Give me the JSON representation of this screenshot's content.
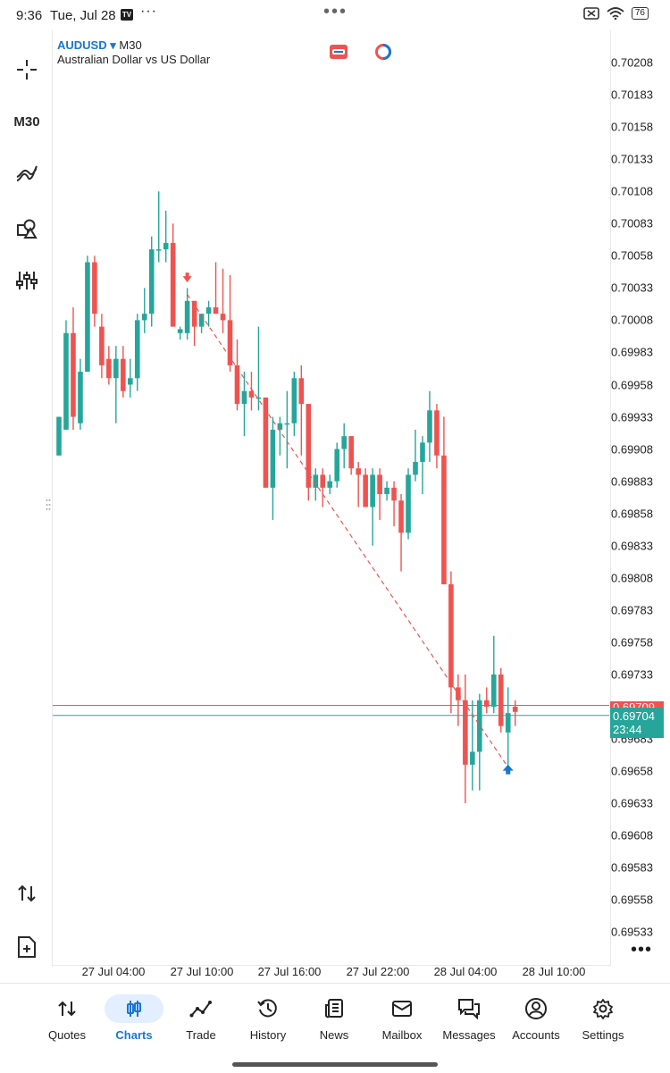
{
  "status_bar": {
    "time": "9:36",
    "date": "Tue, Jul 28",
    "app_badge": "TV",
    "dots": "···",
    "center_dots": "•••",
    "battery": "76"
  },
  "chart_header": {
    "symbol": "AUDUSD",
    "symbol_caret": "▾",
    "timeframe": "M30",
    "description": "Australian Dollar vs US Dollar"
  },
  "sidebar": {
    "timeframe_label": "M30"
  },
  "price_axis": {
    "ticks": [
      "0.70208",
      "0.70183",
      "0.70158",
      "0.70133",
      "0.70108",
      "0.70083",
      "0.70058",
      "0.70033",
      "0.70008",
      "0.69983",
      "0.69958",
      "0.69933",
      "0.69908",
      "0.69883",
      "0.69858",
      "0.69833",
      "0.69808",
      "0.69783",
      "0.69758",
      "0.69733",
      "0.69683",
      "0.69658",
      "0.69633",
      "0.69608",
      "0.69583",
      "0.69558",
      "0.69533"
    ],
    "ask_label": "0.69709",
    "bid_label": "0.69704",
    "countdown": "23:44",
    "more": "•••"
  },
  "time_axis": {
    "ticks": [
      "27 Jul 04:00",
      "27 Jul 10:00",
      "27 Jul 16:00",
      "27 Jul 22:00",
      "28 Jul 04:00",
      "28 Jul 10:00"
    ]
  },
  "colors": {
    "bull": "#26a69a",
    "bear": "#ef5350",
    "accent": "#1976d2",
    "ask_line": "#ef5350",
    "bid_line": "#26a69a"
  },
  "chart_data": {
    "type": "candlestick",
    "symbol": "AUDUSD",
    "timeframe": "M30",
    "ylim": [
      0.6952,
      0.70225
    ],
    "bid": 0.69704,
    "ask": 0.69709,
    "candles": [
      {
        "o": 0.69903,
        "h": 0.69933,
        "l": 0.69903,
        "c": 0.69933
      },
      {
        "o": 0.69923,
        "h": 0.70008,
        "l": 0.69923,
        "c": 0.69998
      },
      {
        "o": 0.69998,
        "h": 0.70018,
        "l": 0.69923,
        "c": 0.69933
      },
      {
        "o": 0.69928,
        "h": 0.69978,
        "l": 0.69923,
        "c": 0.69968
      },
      {
        "o": 0.69968,
        "h": 0.70058,
        "l": 0.69968,
        "c": 0.70053
      },
      {
        "o": 0.70053,
        "h": 0.70058,
        "l": 0.70003,
        "c": 0.70013
      },
      {
        "o": 0.70003,
        "h": 0.70013,
        "l": 0.69963,
        "c": 0.69973
      },
      {
        "o": 0.69978,
        "h": 0.69988,
        "l": 0.69958,
        "c": 0.69963
      },
      {
        "o": 0.69963,
        "h": 0.69988,
        "l": 0.69928,
        "c": 0.69978
      },
      {
        "o": 0.69978,
        "h": 0.69988,
        "l": 0.69948,
        "c": 0.69953
      },
      {
        "o": 0.69958,
        "h": 0.69978,
        "l": 0.69948,
        "c": 0.69963
      },
      {
        "o": 0.69963,
        "h": 0.70013,
        "l": 0.69953,
        "c": 0.70008
      },
      {
        "o": 0.70008,
        "h": 0.70033,
        "l": 0.69998,
        "c": 0.70013
      },
      {
        "o": 0.70013,
        "h": 0.70073,
        "l": 0.70003,
        "c": 0.70063
      },
      {
        "o": 0.70063,
        "h": 0.70108,
        "l": 0.70053,
        "c": 0.70063
      },
      {
        "o": 0.70063,
        "h": 0.70093,
        "l": 0.70053,
        "c": 0.70068
      },
      {
        "o": 0.70068,
        "h": 0.70083,
        "l": 0.70003,
        "c": 0.70003
      },
      {
        "o": 0.69998,
        "h": 0.70003,
        "l": 0.69993,
        "c": 0.70001
      },
      {
        "o": 0.69998,
        "h": 0.70033,
        "l": 0.69993,
        "c": 0.70023
      },
      {
        "o": 0.70023,
        "h": 0.70023,
        "l": 0.69988,
        "c": 0.70003
      },
      {
        "o": 0.70003,
        "h": 0.70013,
        "l": 0.69998,
        "c": 0.70013
      },
      {
        "o": 0.70013,
        "h": 0.70023,
        "l": 0.70003,
        "c": 0.70018
      },
      {
        "o": 0.70018,
        "h": 0.70053,
        "l": 0.70013,
        "c": 0.70013
      },
      {
        "o": 0.70013,
        "h": 0.70048,
        "l": 0.69998,
        "c": 0.70008
      },
      {
        "o": 0.70008,
        "h": 0.70043,
        "l": 0.69968,
        "c": 0.69973
      },
      {
        "o": 0.69973,
        "h": 0.69993,
        "l": 0.69938,
        "c": 0.69943
      },
      {
        "o": 0.69943,
        "h": 0.69968,
        "l": 0.69918,
        "c": 0.69953
      },
      {
        "o": 0.69953,
        "h": 0.69968,
        "l": 0.69938,
        "c": 0.69948
      },
      {
        "o": 0.69948,
        "h": 0.70003,
        "l": 0.69938,
        "c": 0.69948
      },
      {
        "o": 0.69948,
        "h": 0.69948,
        "l": 0.69878,
        "c": 0.69878
      },
      {
        "o": 0.69878,
        "h": 0.69933,
        "l": 0.69853,
        "c": 0.69923
      },
      {
        "o": 0.69923,
        "h": 0.69933,
        "l": 0.69903,
        "c": 0.69928
      },
      {
        "o": 0.69928,
        "h": 0.69953,
        "l": 0.69893,
        "c": 0.69928
      },
      {
        "o": 0.69928,
        "h": 0.69968,
        "l": 0.69918,
        "c": 0.69963
      },
      {
        "o": 0.69963,
        "h": 0.69973,
        "l": 0.69903,
        "c": 0.69943
      },
      {
        "o": 0.69943,
        "h": 0.69943,
        "l": 0.69868,
        "c": 0.69878
      },
      {
        "o": 0.69878,
        "h": 0.69893,
        "l": 0.69868,
        "c": 0.69888
      },
      {
        "o": 0.69888,
        "h": 0.69893,
        "l": 0.69863,
        "c": 0.69878
      },
      {
        "o": 0.69878,
        "h": 0.69888,
        "l": 0.69873,
        "c": 0.69883
      },
      {
        "o": 0.69883,
        "h": 0.69913,
        "l": 0.69878,
        "c": 0.69908
      },
      {
        "o": 0.69908,
        "h": 0.69928,
        "l": 0.69893,
        "c": 0.69918
      },
      {
        "o": 0.69918,
        "h": 0.69918,
        "l": 0.69888,
        "c": 0.69893
      },
      {
        "o": 0.69893,
        "h": 0.69898,
        "l": 0.69863,
        "c": 0.69888
      },
      {
        "o": 0.69888,
        "h": 0.69893,
        "l": 0.69863,
        "c": 0.69863
      },
      {
        "o": 0.69863,
        "h": 0.69893,
        "l": 0.69833,
        "c": 0.69888
      },
      {
        "o": 0.69888,
        "h": 0.69893,
        "l": 0.69853,
        "c": 0.69873
      },
      {
        "o": 0.69873,
        "h": 0.69883,
        "l": 0.69868,
        "c": 0.69878
      },
      {
        "o": 0.69878,
        "h": 0.69883,
        "l": 0.69848,
        "c": 0.69868
      },
      {
        "o": 0.69868,
        "h": 0.69873,
        "l": 0.69813,
        "c": 0.69843
      },
      {
        "o": 0.69843,
        "h": 0.69893,
        "l": 0.69838,
        "c": 0.69888
      },
      {
        "o": 0.69888,
        "h": 0.69923,
        "l": 0.69883,
        "c": 0.69898
      },
      {
        "o": 0.69898,
        "h": 0.69918,
        "l": 0.69873,
        "c": 0.69913
      },
      {
        "o": 0.69913,
        "h": 0.69953,
        "l": 0.69898,
        "c": 0.69938
      },
      {
        "o": 0.69938,
        "h": 0.69943,
        "l": 0.69893,
        "c": 0.69903
      },
      {
        "o": 0.69903,
        "h": 0.69933,
        "l": 0.69803,
        "c": 0.69803
      },
      {
        "o": 0.69803,
        "h": 0.69813,
        "l": 0.69703,
        "c": 0.69723
      },
      {
        "o": 0.69723,
        "h": 0.69733,
        "l": 0.69693,
        "c": 0.69713
      },
      {
        "o": 0.69713,
        "h": 0.69733,
        "l": 0.69633,
        "c": 0.69663
      },
      {
        "o": 0.69663,
        "h": 0.69713,
        "l": 0.69643,
        "c": 0.69673
      },
      {
        "o": 0.69673,
        "h": 0.69718,
        "l": 0.69643,
        "c": 0.69713
      },
      {
        "o": 0.69713,
        "h": 0.69723,
        "l": 0.69703,
        "c": 0.69708
      },
      {
        "o": 0.69708,
        "h": 0.69763,
        "l": 0.69703,
        "c": 0.69733
      },
      {
        "o": 0.69733,
        "h": 0.69738,
        "l": 0.69688,
        "c": 0.69693
      },
      {
        "o": 0.69688,
        "h": 0.69723,
        "l": 0.69663,
        "c": 0.69703
      },
      {
        "o": 0.69708,
        "h": 0.69713,
        "l": 0.69693,
        "c": 0.69704
      }
    ]
  },
  "nav": [
    {
      "label": "Quotes",
      "icon": "quotes-icon"
    },
    {
      "label": "Charts",
      "icon": "charts-icon",
      "active": true
    },
    {
      "label": "Trade",
      "icon": "trade-icon"
    },
    {
      "label": "History",
      "icon": "history-icon"
    },
    {
      "label": "News",
      "icon": "news-icon"
    },
    {
      "label": "Mailbox",
      "icon": "mailbox-icon"
    },
    {
      "label": "Messages",
      "icon": "messages-icon"
    },
    {
      "label": "Accounts",
      "icon": "accounts-icon"
    },
    {
      "label": "Settings",
      "icon": "settings-icon"
    }
  ]
}
